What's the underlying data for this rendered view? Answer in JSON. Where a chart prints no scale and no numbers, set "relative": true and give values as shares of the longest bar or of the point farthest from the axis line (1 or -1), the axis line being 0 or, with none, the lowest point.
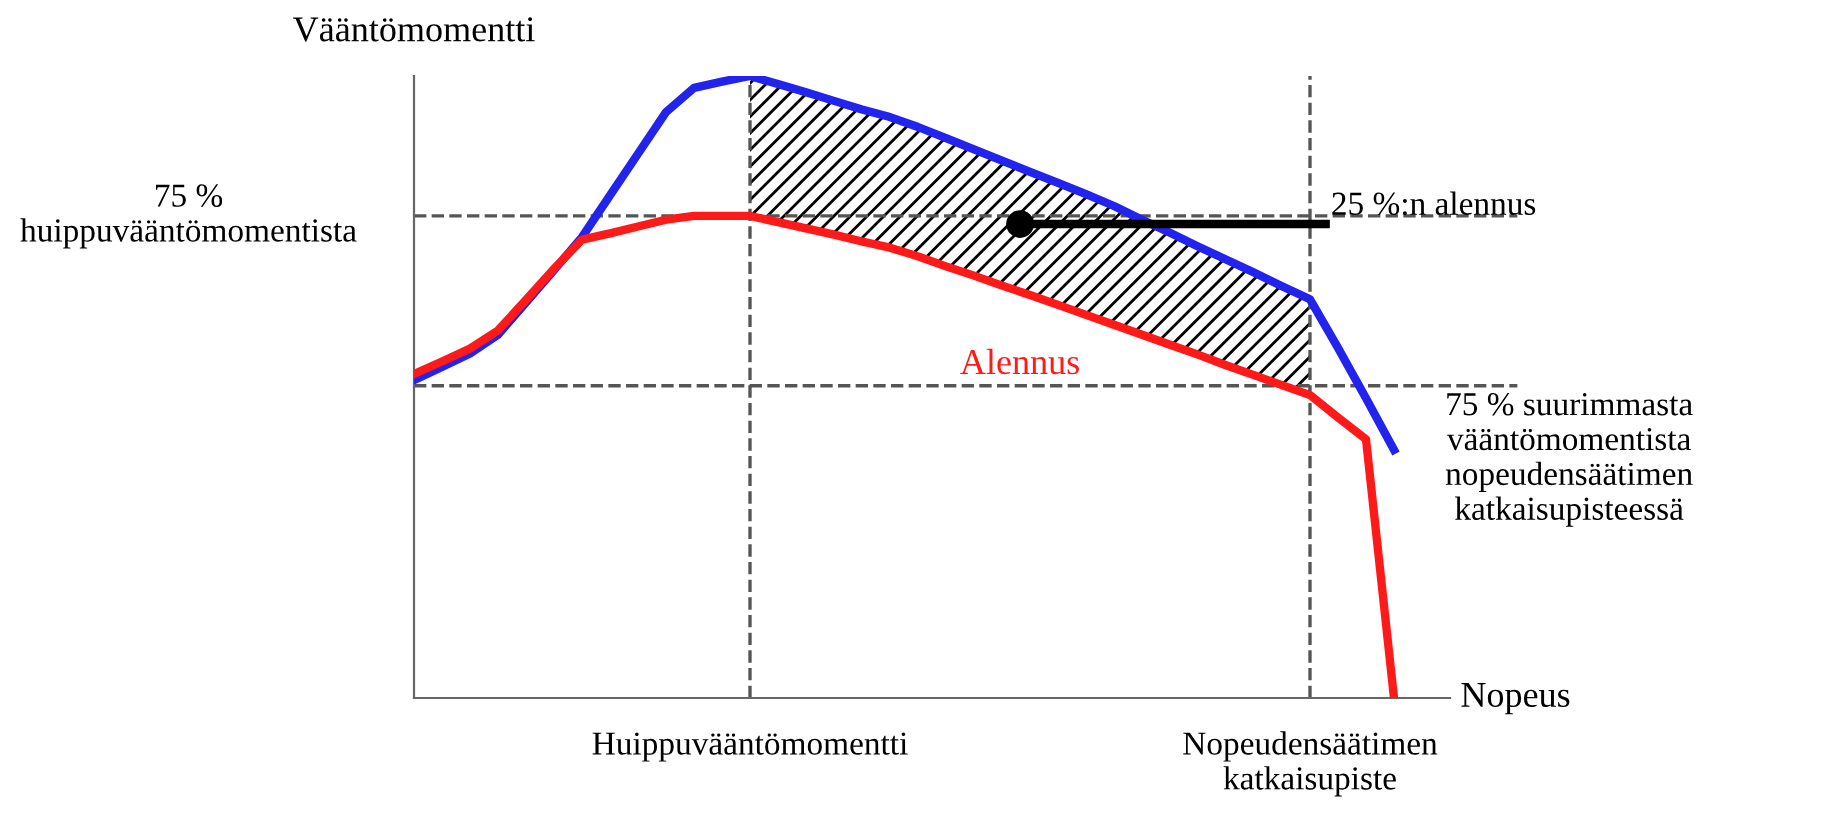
{
  "chart_data": {
    "type": "line",
    "relative": true,
    "ylabel": "Vääntömomentti",
    "xlabel": "Nopeus",
    "tick_labels": "x",
    "marker": "none",
    "line_style": "solid",
    "categories": [
      null,
      null,
      null,
      null,
      null,
      null,
      null,
      null,
      null,
      null,
      null,
      null,
      "Huippuvääntömomentti",
      null,
      null,
      null,
      null,
      null,
      null,
      null,
      null,
      null,
      null,
      null,
      null,
      null,
      null,
      null,
      null,
      null,
      null,
      null,
      "Nopeudensäätimen\nkatkaisupiste",
      null,
      null,
      null,
      null,
      null
    ],
    "series": [
      {
        "color": "#2323ee",
        "values": [
          0.511,
          0.532,
          0.554,
          0.584,
          0.636,
          0.688,
          0.741,
          0.808,
          0.875,
          0.942,
          0.981,
          0.991,
          1,
          0.987,
          0.974,
          0.96,
          0.946,
          0.934,
          0.918,
          0.9,
          0.882,
          0.864,
          0.846,
          0.828,
          0.81,
          0.791,
          0.769,
          0.748,
          0.726,
          0.705,
          0.684,
          0.662,
          0.641,
          0.563,
          0.482,
          0.399,
          null,
          null
        ],
        "lower": [
          null,
          null,
          null,
          null,
          null,
          null,
          null,
          null,
          null,
          null,
          null,
          null,
          0.775,
          0.765,
          0.755,
          0.745,
          0.734,
          0.724,
          0.71,
          0.694,
          0.679,
          0.663,
          0.648,
          0.632,
          0.616,
          0.6,
          0.584,
          0.568,
          0.552,
          0.535,
          0.519,
          0.503,
          0.487,
          null,
          null,
          null,
          null,
          null
        ],
        "upper": [
          null,
          null,
          null,
          null,
          null,
          null,
          null,
          null,
          null,
          null,
          null,
          null,
          1,
          0.987,
          0.974,
          0.96,
          0.946,
          0.934,
          0.918,
          0.9,
          0.882,
          0.864,
          0.846,
          0.828,
          0.81,
          0.791,
          0.769,
          0.748,
          0.726,
          0.705,
          0.684,
          0.662,
          0.641,
          null,
          null,
          null,
          null,
          null
        ]
      },
      {
        "color": "#ff1a1a",
        "values": [
          0.521,
          0.541,
          0.562,
          0.591,
          0.64,
          0.69,
          0.737,
          0.747,
          0.758,
          0.769,
          0.775,
          0.775,
          0.775,
          0.765,
          0.755,
          0.745,
          0.734,
          0.724,
          0.71,
          0.694,
          0.679,
          0.663,
          0.648,
          0.632,
          0.616,
          0.6,
          0.584,
          0.568,
          0.552,
          0.535,
          0.519,
          0.503,
          0.487,
          0.451,
          0.416,
          0,
          null,
          null
        ]
      }
    ],
    "ref_lines": [
      {
        "axis": "y",
        "value": 0.775,
        "label": "75 %\nhuippuvääntömomentista",
        "color": "#555555",
        "line_style": "dashed"
      },
      {
        "axis": "y",
        "value": 0.502,
        "label": "75 % suurimmasta\nvääntömomentista\nnopeudensäätimen\nkatkaisupisteessä",
        "color": "#555555",
        "line_style": "dashed"
      },
      {
        "axis": "x",
        "value": "Huippuvääntömomentti",
        "color": "#555555",
        "line_style": "dashed"
      },
      {
        "axis": "x",
        "value": "Nopeudensäätimen\nkatkaisupiste",
        "color": "#555555",
        "line_style": "dashed"
      }
    ],
    "annotations": [
      "25 %:n alennus",
      "Alennus"
    ]
  }
}
